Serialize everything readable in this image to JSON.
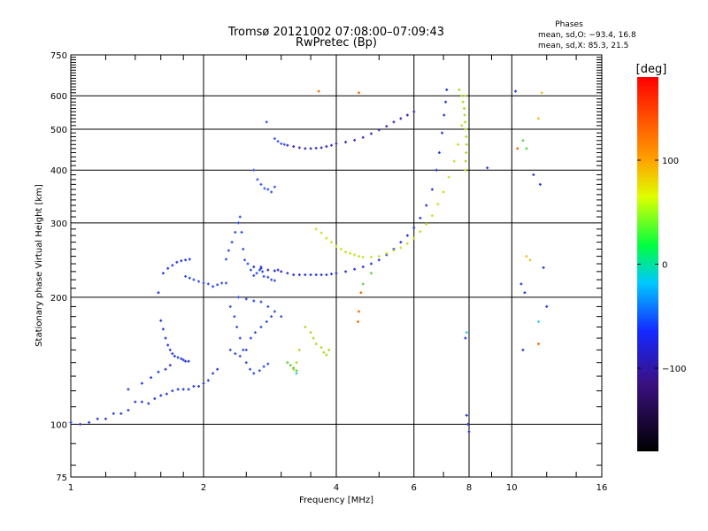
{
  "chart_data": {
    "type": "scatter",
    "title": "Tromsø 20121002 07:08:00–07:09:43",
    "subtitle": "RwPretec (Bp)",
    "xlabel": "Frequency [MHz]",
    "ylabel": "Stationary phase Virtual Height [km]",
    "x_scale": "log2",
    "y_scale": "log",
    "xlim": [
      1,
      16
    ],
    "ylim": [
      75,
      750
    ],
    "x_ticks": [
      1,
      2,
      4,
      6,
      8,
      10,
      16
    ],
    "y_ticks": [
      75,
      100,
      200,
      300,
      400,
      500,
      600,
      750
    ],
    "phases": {
      "title": "Phases",
      "line_o": "mean, sd,O: −93.4, 16.8",
      "line_x": "mean, sd,X:  85.3, 21.5"
    },
    "colorbar": {
      "label": "[deg]",
      "range": [
        -180,
        180
      ],
      "ticks": [
        100,
        0,
        -100
      ],
      "tick_labels": [
        "100",
        "0",
        "−100"
      ]
    },
    "series": [
      {
        "color": "#2a3ce0",
        "points": [
          [
            1.0,
            101
          ],
          [
            1.05,
            100
          ],
          [
            1.1,
            101
          ],
          [
            1.15,
            103
          ],
          [
            1.2,
            103
          ],
          [
            1.25,
            106
          ],
          [
            1.3,
            106
          ],
          [
            1.35,
            108
          ],
          [
            1.4,
            113
          ],
          [
            1.45,
            113
          ],
          [
            1.5,
            112
          ],
          [
            1.55,
            115
          ],
          [
            1.6,
            117
          ],
          [
            1.65,
            118
          ],
          [
            1.7,
            120
          ],
          [
            1.75,
            121
          ],
          [
            1.8,
            121
          ],
          [
            1.85,
            121
          ],
          [
            1.9,
            123
          ],
          [
            1.95,
            123
          ],
          [
            2.0,
            125
          ],
          [
            2.05,
            127
          ],
          [
            2.1,
            132
          ],
          [
            2.15,
            135
          ],
          [
            1.35,
            121
          ],
          [
            1.45,
            125
          ],
          [
            1.52,
            129
          ],
          [
            1.58,
            133
          ],
          [
            1.64,
            135
          ],
          [
            1.68,
            138
          ]
        ]
      },
      {
        "color": "#2a3ce0",
        "points": [
          [
            1.58,
            205
          ],
          [
            1.6,
            176
          ],
          [
            1.62,
            168
          ],
          [
            1.64,
            160
          ],
          [
            1.66,
            154
          ],
          [
            1.68,
            150
          ],
          [
            1.7,
            147
          ],
          [
            1.72,
            145
          ],
          [
            1.75,
            144
          ],
          [
            1.78,
            143
          ],
          [
            1.8,
            142
          ],
          [
            1.82,
            141
          ],
          [
            1.85,
            141
          ],
          [
            1.62,
            228
          ],
          [
            1.66,
            234
          ],
          [
            1.7,
            238
          ],
          [
            1.74,
            242
          ],
          [
            1.78,
            244
          ],
          [
            1.82,
            245
          ],
          [
            1.86,
            246
          ]
        ]
      },
      {
        "color": "#3250e6",
        "points": [
          [
            2.1,
            212
          ],
          [
            2.15,
            214
          ],
          [
            2.2,
            216
          ],
          [
            2.25,
            216
          ],
          [
            2.05,
            215
          ],
          [
            2.0,
            216
          ],
          [
            1.95,
            218
          ],
          [
            1.9,
            220
          ],
          [
            1.86,
            222
          ],
          [
            1.82,
            224
          ],
          [
            2.25,
            246
          ],
          [
            2.28,
            258
          ],
          [
            2.32,
            270
          ],
          [
            2.36,
            285
          ],
          [
            2.4,
            300
          ],
          [
            2.42,
            310
          ],
          [
            2.44,
            285
          ],
          [
            2.46,
            260
          ],
          [
            2.48,
            245
          ],
          [
            2.52,
            240
          ],
          [
            2.56,
            232
          ],
          [
            2.6,
            225
          ],
          [
            2.64,
            228
          ],
          [
            2.68,
            232
          ],
          [
            2.7,
            236
          ],
          [
            2.72,
            230
          ],
          [
            2.74,
            224
          ],
          [
            2.8,
            223
          ],
          [
            2.85,
            220
          ],
          [
            2.9,
            219
          ],
          [
            2.3,
            190
          ],
          [
            2.35,
            180
          ],
          [
            2.38,
            170
          ],
          [
            2.42,
            160
          ],
          [
            2.46,
            150
          ],
          [
            2.5,
            140
          ],
          [
            2.55,
            135
          ],
          [
            2.6,
            132
          ],
          [
            2.68,
            134
          ],
          [
            2.74,
            137
          ],
          [
            2.8,
            139
          ],
          [
            2.3,
            150
          ],
          [
            2.36,
            147
          ],
          [
            2.42,
            145
          ],
          [
            2.5,
            150
          ],
          [
            2.56,
            160
          ],
          [
            2.62,
            165
          ],
          [
            2.7,
            170
          ],
          [
            2.78,
            175
          ],
          [
            2.85,
            180
          ],
          [
            2.4,
            200
          ],
          [
            2.5,
            198
          ],
          [
            2.6,
            196
          ],
          [
            2.7,
            195
          ],
          [
            2.8,
            190
          ],
          [
            2.9,
            185
          ],
          [
            3.0,
            180
          ]
        ]
      },
      {
        "color": "#3a5cf0",
        "points": [
          [
            2.6,
            400
          ],
          [
            2.65,
            380
          ],
          [
            2.7,
            370
          ],
          [
            2.75,
            362
          ],
          [
            2.8,
            360
          ],
          [
            2.85,
            355
          ],
          [
            2.9,
            365
          ],
          [
            2.78,
            520
          ],
          [
            2.9,
            475
          ],
          [
            2.95,
            468
          ],
          [
            3.0,
            462
          ],
          [
            3.05,
            460
          ]
        ]
      },
      {
        "color": "#3b2fb8",
        "points": [
          [
            3.1,
            458
          ],
          [
            3.2,
            455
          ],
          [
            3.3,
            452
          ],
          [
            3.4,
            450
          ],
          [
            3.5,
            450
          ],
          [
            3.6,
            451
          ],
          [
            3.7,
            452
          ],
          [
            3.8,
            455
          ],
          [
            3.9,
            458
          ],
          [
            4.0,
            462
          ],
          [
            4.2,
            466
          ],
          [
            4.4,
            471
          ],
          [
            4.6,
            478
          ],
          [
            4.8,
            488
          ],
          [
            5.0,
            498
          ],
          [
            5.2,
            508
          ],
          [
            5.4,
            520
          ],
          [
            5.6,
            530
          ],
          [
            5.8,
            540
          ],
          [
            6.0,
            550
          ]
        ]
      },
      {
        "color": "#2a36d8",
        "points": [
          [
            2.95,
            232
          ],
          [
            3.1,
            228
          ],
          [
            3.2,
            226
          ],
          [
            3.3,
            226
          ],
          [
            3.4,
            226
          ],
          [
            3.5,
            226
          ],
          [
            3.6,
            226
          ],
          [
            3.7,
            226
          ],
          [
            3.8,
            226
          ],
          [
            3.9,
            227
          ],
          [
            4.0,
            228
          ],
          [
            4.2,
            230
          ],
          [
            4.4,
            233
          ],
          [
            4.6,
            236
          ],
          [
            4.8,
            240
          ],
          [
            5.0,
            245
          ],
          [
            5.2,
            252
          ],
          [
            5.4,
            260
          ],
          [
            5.6,
            270
          ],
          [
            5.8,
            280
          ],
          [
            6.0,
            292
          ],
          [
            6.2,
            308
          ],
          [
            6.4,
            330
          ],
          [
            6.6,
            360
          ],
          [
            6.75,
            400
          ],
          [
            6.85,
            440
          ],
          [
            6.95,
            490
          ],
          [
            7.02,
            540
          ],
          [
            7.08,
            580
          ],
          [
            7.12,
            620
          ]
        ]
      },
      {
        "color": "#3030c0",
        "points": [
          [
            2.6,
            236
          ],
          [
            2.7,
            234
          ],
          [
            2.8,
            232
          ],
          [
            2.9,
            231
          ],
          [
            3.0,
            230
          ]
        ]
      },
      {
        "color": "#c8e020",
        "points": [
          [
            3.6,
            290
          ],
          [
            3.7,
            284
          ],
          [
            3.8,
            276
          ],
          [
            3.9,
            270
          ],
          [
            4.0,
            264
          ],
          [
            4.1,
            260
          ],
          [
            4.2,
            256
          ],
          [
            4.3,
            254
          ],
          [
            4.4,
            252
          ],
          [
            4.5,
            250
          ],
          [
            4.6,
            249
          ],
          [
            4.8,
            249
          ],
          [
            5.0,
            250
          ],
          [
            5.2,
            254
          ],
          [
            5.4,
            258
          ],
          [
            5.6,
            262
          ],
          [
            5.8,
            268
          ],
          [
            6.0,
            276
          ],
          [
            6.2,
            286
          ],
          [
            6.4,
            298
          ],
          [
            6.6,
            312
          ],
          [
            6.8,
            332
          ],
          [
            7.0,
            355
          ],
          [
            7.2,
            385
          ],
          [
            7.4,
            420
          ],
          [
            7.55,
            460
          ],
          [
            7.7,
            510
          ],
          [
            7.8,
            560
          ],
          [
            7.85,
            600
          ]
        ]
      },
      {
        "color": "#a8dc20",
        "points": [
          [
            3.7,
            152
          ],
          [
            3.75,
            148
          ],
          [
            3.8,
            146
          ],
          [
            3.85,
            150
          ],
          [
            3.6,
            155
          ],
          [
            3.55,
            160
          ],
          [
            3.5,
            165
          ],
          [
            3.4,
            170
          ],
          [
            3.3,
            150
          ],
          [
            3.25,
            140
          ],
          [
            3.2,
            135
          ],
          [
            7.6,
            620
          ],
          [
            7.7,
            600
          ],
          [
            7.75,
            580
          ],
          [
            7.8,
            560
          ],
          [
            7.82,
            540
          ],
          [
            7.84,
            520
          ],
          [
            7.86,
            500
          ],
          [
            7.88,
            480
          ],
          [
            7.9,
            460
          ],
          [
            7.88,
            440
          ],
          [
            7.86,
            420
          ],
          [
            7.84,
            400
          ]
        ]
      },
      {
        "color": "#60d040",
        "points": [
          [
            3.1,
            140
          ],
          [
            3.15,
            138
          ],
          [
            3.2,
            136
          ],
          [
            3.25,
            134
          ],
          [
            4.8,
            228
          ],
          [
            4.6,
            215
          ],
          [
            10.6,
            470
          ],
          [
            10.8,
            450
          ]
        ]
      },
      {
        "color": "#ff6a00",
        "points": [
          [
            3.65,
            615
          ],
          [
            4.5,
            610
          ],
          [
            4.55,
            205
          ],
          [
            4.5,
            185
          ],
          [
            4.48,
            175
          ],
          [
            10.3,
            450
          ],
          [
            11.5,
            155
          ]
        ]
      },
      {
        "color": "#e8c020",
        "points": [
          [
            10.8,
            250
          ],
          [
            11.0,
            245
          ],
          [
            11.5,
            530
          ],
          [
            11.7,
            610
          ]
        ]
      },
      {
        "color": "#2a3ce0",
        "points": [
          [
            7.9,
            105
          ],
          [
            7.95,
            100
          ],
          [
            8.0,
            96
          ],
          [
            7.85,
            160
          ],
          [
            8.8,
            405
          ],
          [
            10.2,
            615
          ],
          [
            10.5,
            215
          ],
          [
            10.7,
            205
          ],
          [
            11.2,
            390
          ],
          [
            11.6,
            370
          ],
          [
            11.8,
            235
          ],
          [
            12.0,
            190
          ],
          [
            10.6,
            150
          ]
        ]
      },
      {
        "color": "#38c8e0",
        "points": [
          [
            3.25,
            132
          ],
          [
            7.9,
            165
          ],
          [
            11.5,
            175
          ]
        ]
      }
    ]
  }
}
